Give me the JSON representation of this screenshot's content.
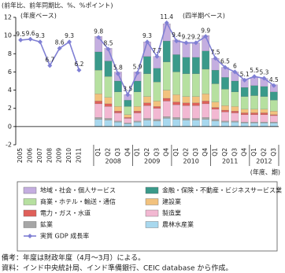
{
  "chart_data": {
    "type": "bar",
    "y_axis_label": "(前年比、前年同期比、%、%ポイント)",
    "x_axis_label": "(年度、期)",
    "annotations": [
      "(年度ベース)",
      "(四半期ベース)"
    ],
    "categories": [
      "2005",
      "2006",
      "2007",
      "2008",
      "2009",
      "2010",
      "2011",
      null,
      "Q1",
      "Q2",
      "Q3",
      "Q4",
      "Q1",
      "Q2",
      "Q3",
      "Q4",
      "Q1",
      "Q2",
      "Q3",
      "Q4",
      "Q1",
      "Q2",
      "Q3",
      "Q4",
      "Q1",
      "Q2",
      "Q3"
    ],
    "x_groups": [
      "2008",
      "2009",
      "2010",
      "2011",
      "2012"
    ],
    "ylim": [
      -2,
      12
    ],
    "yticks": [
      -2,
      0,
      2,
      4,
      6,
      8,
      10,
      12
    ],
    "series": [
      {
        "name": "地域・社会・個人サービス",
        "color": "#c4aee0",
        "values": [
          null,
          null,
          null,
          null,
          null,
          null,
          null,
          null,
          1.7,
          1.4,
          1.0,
          0.6,
          1.0,
          1.6,
          1.3,
          1.9,
          1.6,
          1.6,
          1.6,
          1.7,
          1.3,
          1.1,
          1.0,
          0.9,
          0.9,
          0.9,
          0.8
        ]
      },
      {
        "name": "金融・保険・不動産・ビジネスサービス業",
        "color": "#3a9a8a",
        "values": [
          null,
          null,
          null,
          null,
          null,
          null,
          null,
          null,
          2.0,
          1.7,
          1.2,
          0.7,
          1.2,
          1.9,
          1.5,
          2.3,
          1.9,
          1.8,
          1.8,
          2.0,
          1.5,
          1.3,
          1.2,
          1.0,
          1.1,
          1.1,
          0.9
        ]
      },
      {
        "name": "商業・ホテル・輸送・通信",
        "color": "#b6e0a0",
        "values": [
          null,
          null,
          null,
          null,
          null,
          null,
          null,
          null,
          2.6,
          2.3,
          1.6,
          0.9,
          1.6,
          2.5,
          2.1,
          3.1,
          2.5,
          2.5,
          2.5,
          2.7,
          2.0,
          1.8,
          1.6,
          1.4,
          1.5,
          1.4,
          1.2
        ]
      },
      {
        "name": "建設業",
        "color": "#f2c27e",
        "values": [
          null,
          null,
          null,
          null,
          null,
          null,
          null,
          null,
          0.8,
          0.7,
          0.5,
          0.3,
          0.5,
          0.7,
          0.6,
          0.9,
          0.8,
          0.7,
          0.7,
          0.8,
          0.6,
          0.5,
          0.5,
          0.4,
          0.4,
          0.4,
          0.4
        ]
      },
      {
        "name": "電力・ガス・水道",
        "color": "#e0605a",
        "values": [
          null,
          null,
          null,
          null,
          null,
          null,
          null,
          null,
          0.3,
          0.3,
          0.2,
          0.1,
          0.2,
          0.3,
          0.2,
          0.3,
          0.3,
          0.3,
          0.3,
          0.3,
          0.2,
          0.2,
          0.2,
          0.2,
          0.2,
          0.2,
          0.1
        ]
      },
      {
        "name": "製造業",
        "color": "#f2b8d2",
        "values": [
          null,
          null,
          null,
          null,
          null,
          null,
          null,
          null,
          1.5,
          1.3,
          0.9,
          0.5,
          0.9,
          1.4,
          1.2,
          1.7,
          1.4,
          1.4,
          1.4,
          1.5,
          1.1,
          1.0,
          0.9,
          0.8,
          0.8,
          0.8,
          0.7
        ]
      },
      {
        "name": "鉱業",
        "color": "#a6a6a6",
        "values": [
          null,
          null,
          null,
          null,
          null,
          null,
          null,
          null,
          0.2,
          0.2,
          0.1,
          0.1,
          0.1,
          0.2,
          0.2,
          0.2,
          0.2,
          0.2,
          0.2,
          0.2,
          0.2,
          0.1,
          0.1,
          0.1,
          0.1,
          0.1,
          0.1
        ]
      },
      {
        "name": "農林水産業",
        "color": "#a8d8ee",
        "values": [
          null,
          null,
          null,
          null,
          null,
          null,
          null,
          null,
          0.8,
          0.7,
          0.5,
          0.3,
          0.5,
          0.7,
          0.6,
          0.9,
          0.8,
          0.7,
          0.7,
          0.8,
          0.6,
          0.5,
          0.5,
          0.4,
          0.4,
          0.4,
          0.4
        ]
      },
      {
        "name": "実質 GDP 成長率",
        "type": "line",
        "color": "#7f7fd4",
        "values": [
          9.5,
          9.6,
          9.3,
          6.7,
          8.6,
          9.3,
          6.2,
          null,
          9.8,
          8.5,
          5.8,
          3.5,
          5.9,
          9.3,
          7.7,
          11.4,
          9.4,
          9.2,
          9.2,
          9.9,
          7.5,
          6.5,
          6.0,
          5.1,
          5.5,
          5.3,
          4.5
        ]
      }
    ]
  },
  "notes": [
    "備考：年度は財政年度（4月～3月）による。",
    "資料：インド中央統計局、インド準備銀行、CEIC database から作成。"
  ]
}
